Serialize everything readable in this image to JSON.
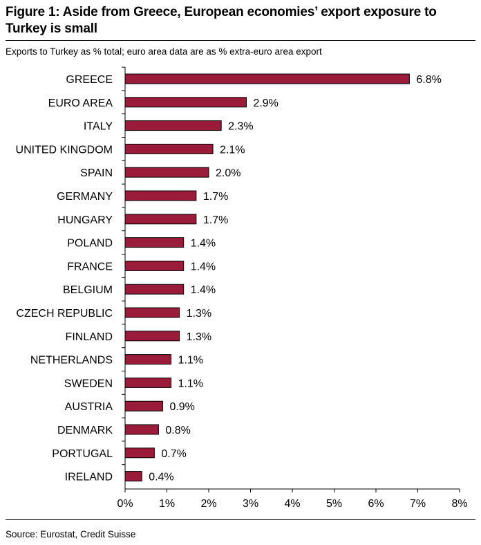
{
  "figure": {
    "title": "Figure 1: Aside from Greece, European economies’ export exposure to Turkey is small",
    "subtitle": "Exports to Turkey as % total; euro area data are as % extra-euro area export",
    "source": "Source: Eurostat, Credit Suisse"
  },
  "colors": {
    "bar_fill": "#9b1b3a",
    "bar_stroke": "#000000"
  },
  "chart_data": {
    "type": "bar",
    "orientation": "horizontal",
    "categories": [
      "GREECE",
      "EURO AREA",
      "ITALY",
      "UNITED KINGDOM",
      "SPAIN",
      "GERMANY",
      "HUNGARY",
      "POLAND",
      "FRANCE",
      "BELGIUM",
      "CZECH REPUBLIC",
      "FINLAND",
      "NETHERLANDS",
      "SWEDEN",
      "AUSTRIA",
      "DENMARK",
      "PORTUGAL",
      "IRELAND"
    ],
    "values": [
      6.8,
      2.9,
      2.3,
      2.1,
      2.0,
      1.7,
      1.7,
      1.4,
      1.4,
      1.4,
      1.3,
      1.3,
      1.1,
      1.1,
      0.9,
      0.8,
      0.7,
      0.4
    ],
    "data_labels": [
      "6.8%",
      "2.9%",
      "2.3%",
      "2.1%",
      "2.0%",
      "1.7%",
      "1.7%",
      "1.4%",
      "1.4%",
      "1.4%",
      "1.3%",
      "1.3%",
      "1.1%",
      "1.1%",
      "0.9%",
      "0.8%",
      "0.7%",
      "0.4%"
    ],
    "x_ticks": [
      0,
      1,
      2,
      3,
      4,
      5,
      6,
      7,
      8
    ],
    "x_tick_labels": [
      "0%",
      "1%",
      "2%",
      "3%",
      "4%",
      "5%",
      "6%",
      "7%",
      "8%"
    ],
    "xlim": [
      0,
      8
    ],
    "grid": false,
    "legend": false
  }
}
